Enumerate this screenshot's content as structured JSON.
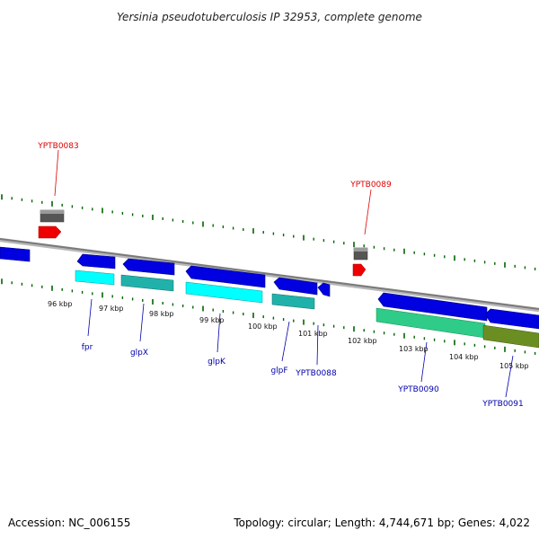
{
  "title": "Yersinia pseudotuberculosis IP 32953, complete genome",
  "footer": {
    "accession": "Accession: NC_006155",
    "summary": "Topology: circular; Length: 4,744,671 bp; Genes: 4,022"
  },
  "colors": {
    "backbone": "#808080",
    "tick": "#006400",
    "cds": "#0000e0",
    "label_red": "#dd0000",
    "label_blue": "#0000aa",
    "gray_feature": "#555555",
    "red_feature": "#ee0000",
    "cyan_feature": "#00ffff",
    "teal_feature": "#20b2aa",
    "green_feature": "#2ecc88",
    "olive_feature": "#6b8e23"
  },
  "kbp_labels": [
    "96 kbp",
    "97 kbp",
    "98 kbp",
    "99 kbp",
    "100 kbp",
    "101 kbp",
    "102 kbp",
    "103 kbp",
    "104 kbp",
    "105 kbp"
  ],
  "gene_labels": {
    "top": [
      "YPTB0083",
      "YPTB0089"
    ],
    "bottom": [
      "fpr",
      "glpX",
      "glpK",
      "glpF",
      "YPTB0088",
      "YPTB0090",
      "YPTB0091"
    ]
  },
  "features": {
    "forward_strand": [
      "YPTB0083 (gray)",
      "YPTB0083 (red)",
      "YPTB0089 (gray)",
      "YPTB0089 (red)"
    ],
    "reverse_strand_cds": [
      "cds-0",
      "fpr",
      "glpX",
      "glpK",
      "glpF",
      "YPTB0088",
      "YPTB0090",
      "YPTB0091"
    ],
    "reverse_strand_rna": [
      "fpr",
      "glpX",
      "glpK",
      "glpF",
      "YPTB0090",
      "YPTB0091"
    ]
  }
}
